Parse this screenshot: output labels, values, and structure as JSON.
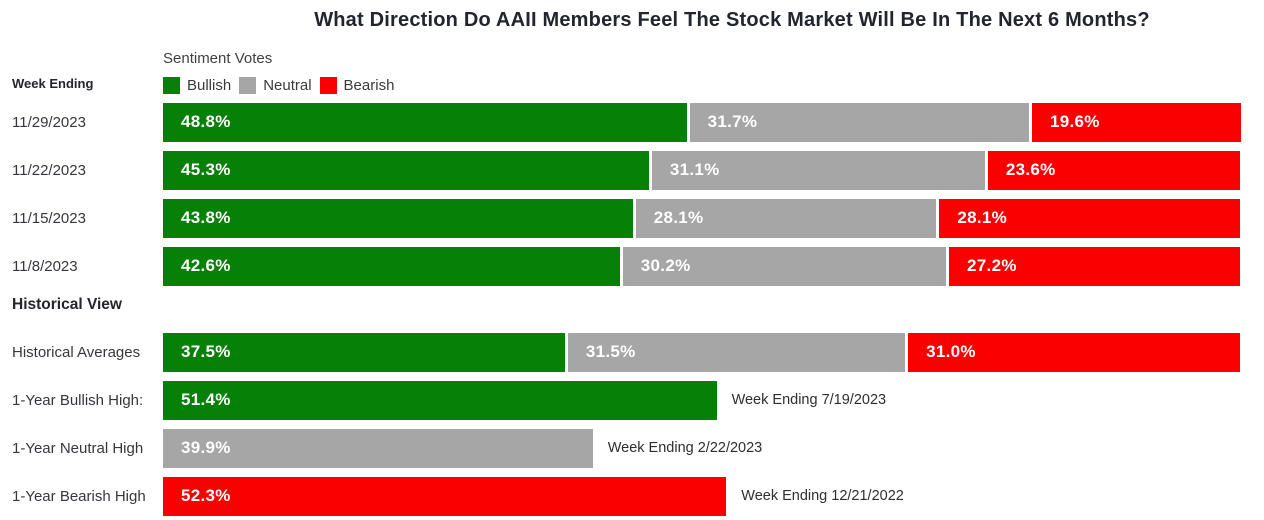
{
  "title": "What Direction Do AAII Members Feel The Stock Market Will Be In The Next 6 Months?",
  "left_column": {
    "header": "Week Ending",
    "section_header": "Historical View"
  },
  "legend": {
    "title": "Sentiment Votes",
    "items": [
      {
        "label": "Bullish",
        "series": "bullish",
        "color": "#068006"
      },
      {
        "label": "Neutral",
        "series": "neutral",
        "color": "#a6a6a6"
      },
      {
        "label": "Bearish",
        "series": "bearish",
        "color": "#fa0000"
      }
    ]
  },
  "colors": {
    "bullish": "#068006",
    "neutral": "#a6a6a6",
    "bearish": "#fa0000",
    "value_label": "#ffffff"
  },
  "chart_data": {
    "type": "bar",
    "orientation": "horizontal-stacked",
    "unit": "%",
    "x_range": [
      0,
      100
    ],
    "series_names": [
      "Bullish",
      "Neutral",
      "Bearish"
    ],
    "weekly_rows": [
      {
        "label": "11/29/2023",
        "values": {
          "bullish": 48.8,
          "neutral": 31.7,
          "bearish": 19.6
        }
      },
      {
        "label": "11/22/2023",
        "values": {
          "bullish": 45.3,
          "neutral": 31.1,
          "bearish": 23.6
        }
      },
      {
        "label": "11/15/2023",
        "values": {
          "bullish": 43.8,
          "neutral": 28.1,
          "bearish": 28.1
        }
      },
      {
        "label": "11/8/2023",
        "values": {
          "bullish": 42.6,
          "neutral": 30.2,
          "bearish": 27.2
        }
      }
    ],
    "historical_rows": [
      {
        "label": "Historical Averages",
        "values": {
          "bullish": 37.5,
          "neutral": 31.5,
          "bearish": 31.0
        }
      },
      {
        "label": "1-Year Bullish High:",
        "series": "bullish",
        "value": 51.4,
        "annotation": "Week Ending 7/19/2023"
      },
      {
        "label": "1-Year Neutral High",
        "series": "neutral",
        "value": 39.9,
        "annotation": "Week Ending 2/22/2023"
      },
      {
        "label": "1-Year Bearish High",
        "series": "bearish",
        "value": 52.3,
        "annotation": "Week Ending 12/21/2022"
      }
    ]
  }
}
